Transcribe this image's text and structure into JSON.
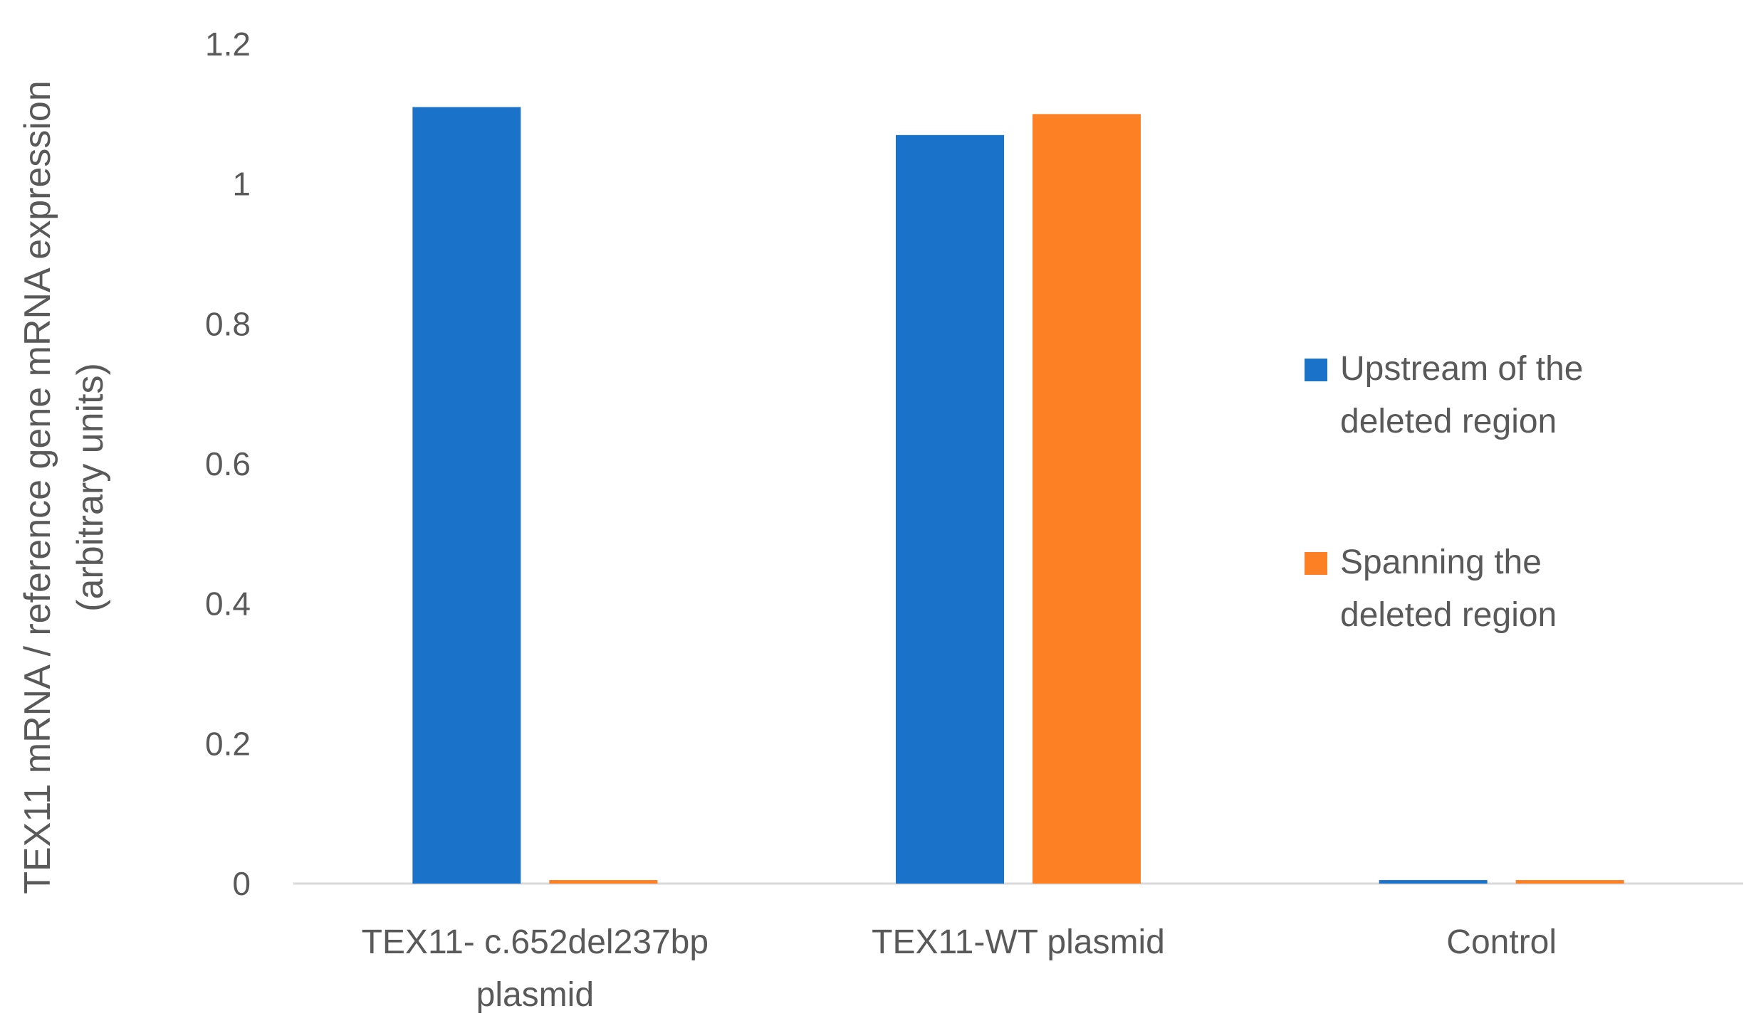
{
  "chart_data": {
    "type": "bar",
    "title": "",
    "xlabel": "",
    "ylabel": [
      "TEX11 mRNA / reference gene mRNA expression",
      "(arbitrary units)"
    ],
    "ylim": [
      0,
      1.2
    ],
    "yticks": [
      "0",
      "0.2",
      "0.4",
      "0.6",
      "0.8",
      "1",
      "1.2"
    ],
    "categories": [
      [
        "TEX11- c.652del237bp",
        "plasmid"
      ],
      [
        "TEX11-WT plasmid"
      ],
      [
        "Control"
      ]
    ],
    "series": [
      {
        "name": [
          "Upstream of the",
          "deleted region"
        ],
        "color": "#1a73c8",
        "values": [
          1.11,
          1.07,
          0.005
        ]
      },
      {
        "name": [
          "Spanning the",
          "deleted region"
        ],
        "color": "#fd8024",
        "values": [
          0.005,
          1.1,
          0.005
        ]
      }
    ],
    "grid": false,
    "legend_position": "right",
    "axis_color": "#d9d9d9"
  }
}
